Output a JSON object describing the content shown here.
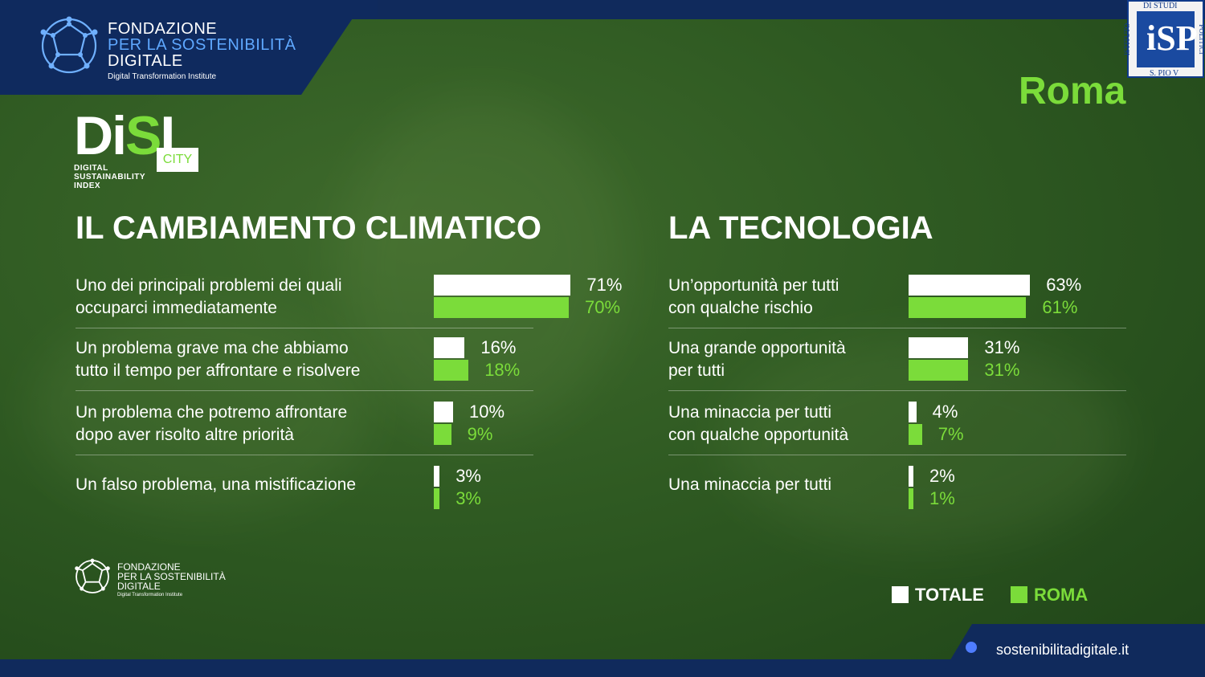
{
  "header": {
    "org_line1": "FONDAZIONE",
    "org_line2": "PER LA SOSTENIBILITÀ",
    "org_line3": "DIGITALE",
    "org_tagline": "Digital Transformation Institute"
  },
  "badge": {
    "letters": "iSP",
    "top": "DI STUDI",
    "bottom": "S. PIO V",
    "left": "ISTITUTO",
    "right": "POLITICI"
  },
  "city_name": "Roma",
  "disi": {
    "title_white": "Di",
    "title_green": "S",
    "title_end": "I",
    "city_tag": "CITY",
    "sub1": "DIGITAL",
    "sub2": "SUSTAINABILITY",
    "sub3": "INDEX"
  },
  "legend": {
    "total": "TOTALE",
    "city": "ROMA",
    "total_color": "#ffffff",
    "city_color": "#7bdc3a"
  },
  "footer": {
    "url": "sostenibilitadigitale.it",
    "org_line1": "FONDAZIONE",
    "org_line2": "PER LA SOSTENIBILITÀ",
    "org_line3": "DIGITALE",
    "org_tagline": "Digital Transformation Institute"
  },
  "chart_data": [
    {
      "type": "bar",
      "title": "IL CAMBIAMENTO CLIMATICO",
      "categories": [
        [
          "Uno dei principali problemi dei quali",
          "occuparci immediatamente"
        ],
        [
          "Un problema grave ma che abbiamo",
          "tutto il tempo per affrontare e risolvere"
        ],
        [
          "Un problema che potremo affrontare",
          "dopo aver risolto altre priorità"
        ],
        [
          "Un falso problema, una mistificazione"
        ]
      ],
      "series": [
        {
          "name": "TOTALE",
          "values": [
            71,
            16,
            10,
            3
          ],
          "labels": [
            "71%",
            "16%",
            "10%",
            "3%"
          ]
        },
        {
          "name": "ROMA",
          "values": [
            70,
            18,
            9,
            3
          ],
          "labels": [
            "70%",
            "18%",
            "9%",
            "3%"
          ]
        }
      ]
    },
    {
      "type": "bar",
      "title": "LA TECNOLOGIA",
      "categories": [
        [
          "Un’opportunità per tutti",
          "con qualche rischio"
        ],
        [
          "Una grande opportunità",
          "per tutti"
        ],
        [
          "Una minaccia per tutti",
          "con qualche opportunità"
        ],
        [
          "Una minaccia per tutti"
        ]
      ],
      "series": [
        {
          "name": "TOTALE",
          "values": [
            63,
            31,
            4,
            2
          ],
          "labels": [
            "63%",
            "31%",
            "4%",
            "2%"
          ]
        },
        {
          "name": "ROMA",
          "values": [
            61,
            31,
            7,
            1
          ],
          "labels": [
            "61%",
            "31%",
            "7%",
            "1%"
          ]
        }
      ]
    }
  ]
}
